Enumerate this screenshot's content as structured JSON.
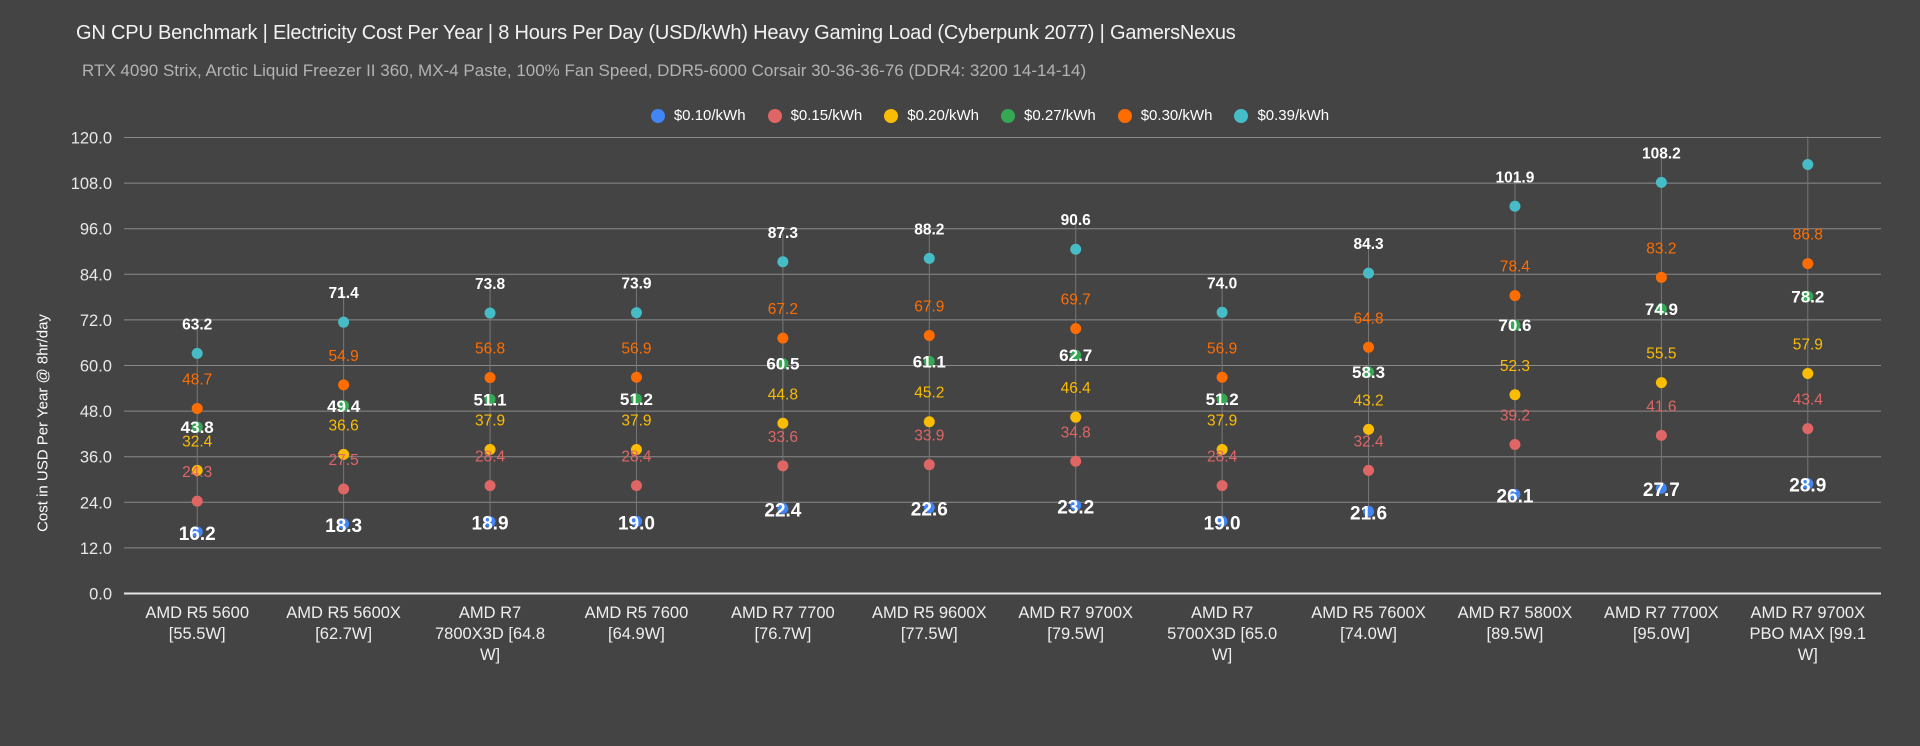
{
  "title": "GN CPU Benchmark | Electricity Cost Per Year | 8 Hours Per Day (USD/kWh) Heavy Gaming Load (Cyberpunk 2077) | GamersNexus",
  "subtitle": "RTX 4090 Strix, Arctic Liquid Freezer II 360, MX-4 Paste, 100% Fan Speed, DDR5-6000 Corsair 30-36-36-76 (DDR4: 3200 14-14-14)",
  "chart_data": {
    "type": "scatter",
    "title": "GN CPU Benchmark | Electricity Cost Per Year | 8 Hours Per Day (USD/kWh) Heavy Gaming Load (Cyberpunk 2077) | GamersNexus",
    "subtitle": "RTX 4090 Strix, Arctic Liquid Freezer II 360, MX-4 Paste, 100% Fan Speed, DDR5-6000 Corsair 30-36-36-76 (DDR4: 3200 14-14-14)",
    "xlabel": "",
    "ylabel": "Cost in USD Per Year @ 8hr/day",
    "ylim": [
      0,
      120
    ],
    "yticks": [
      "0.0",
      "12.0",
      "24.0",
      "36.0",
      "48.0",
      "60.0",
      "72.0",
      "84.0",
      "96.0",
      "108.0",
      "120.0"
    ],
    "grid": true,
    "legend_position": "top-center",
    "categories": [
      "AMD R5 5600 [55.5W]",
      "AMD R5 5600X [62.7W]",
      "AMD R7 7800X3D [64.8 W]",
      "AMD R5 7600 [64.9W]",
      "AMD R7 7700 [76.7W]",
      "AMD R5 9600X [77.5W]",
      "AMD R7 9700X [79.5W]",
      "AMD R7 5700X3D [65.0 W]",
      "AMD R5 7600X [74.0W]",
      "AMD R7 5800X [89.5W]",
      "AMD R7 7700X [95.0W]",
      "AMD R7 9700X PBO MAX [99.1 W]"
    ],
    "category_lines": [
      [
        "AMD R5 5600",
        "[55.5W]"
      ],
      [
        "AMD R5 5600X",
        "[62.7W]"
      ],
      [
        "AMD R7",
        "7800X3D [64.8",
        "W]"
      ],
      [
        "AMD R5 7600",
        "[64.9W]"
      ],
      [
        "AMD R7 7700",
        "[76.7W]"
      ],
      [
        "AMD R5 9600X",
        "[77.5W]"
      ],
      [
        "AMD R7 9700X",
        "[79.5W]"
      ],
      [
        "AMD R7",
        "5700X3D [65.0",
        "W]"
      ],
      [
        "AMD R5 7600X",
        "[74.0W]"
      ],
      [
        "AMD R7 5800X",
        "[89.5W]"
      ],
      [
        "AMD R7 7700X",
        "[95.0W]"
      ],
      [
        "AMD R7 9700X",
        "PBO MAX [99.1",
        "W]"
      ]
    ],
    "series": [
      {
        "name": "$0.10/kWh",
        "color": "#4285F4",
        "label_color": "#ffffff",
        "label_style": "on-point-bold",
        "values": [
          16.2,
          18.3,
          18.9,
          19.0,
          22.4,
          22.6,
          23.2,
          19.0,
          21.6,
          26.1,
          27.7,
          28.9
        ],
        "labels": [
          "16.2",
          "18.3",
          "18.9",
          "19.0",
          "22.4",
          "22.6",
          "23.2",
          "19.0",
          "21.6",
          "26.1",
          "27.7",
          "28.9"
        ]
      },
      {
        "name": "$0.15/kWh",
        "color": "#E06666",
        "label_color": "#E06666",
        "label_style": "above",
        "values": [
          24.3,
          27.5,
          28.4,
          28.4,
          33.6,
          33.9,
          34.8,
          28.4,
          32.4,
          39.2,
          41.6,
          43.4
        ],
        "labels": [
          "24.3",
          "27.5",
          "28.4",
          "28.4",
          "33.6",
          "33.9",
          "34.8",
          "28.4",
          "32.4",
          "39.2",
          "41.6",
          "43.4"
        ]
      },
      {
        "name": "$0.20/kWh",
        "color": "#FBBC04",
        "label_color": "#FBBC04",
        "label_style": "above",
        "values": [
          32.4,
          36.6,
          37.9,
          37.9,
          44.8,
          45.2,
          46.4,
          37.9,
          43.2,
          52.3,
          55.5,
          57.9
        ],
        "labels": [
          "32.4",
          "36.6",
          "37.9",
          "37.9",
          "44.8",
          "45.2",
          "46.4",
          "37.9",
          "43.2",
          "52.3",
          "55.5",
          "57.9"
        ]
      },
      {
        "name": "$0.27/kWh",
        "color": "#34A853",
        "label_color": "#ffffff",
        "label_style": "on-point",
        "values": [
          43.8,
          49.4,
          51.1,
          51.2,
          60.5,
          61.1,
          62.7,
          51.2,
          58.3,
          70.6,
          74.9,
          78.2
        ],
        "labels": [
          "43.8",
          "49.4",
          "51.1",
          "51.2",
          "60.5",
          "61.1",
          "62.7",
          "51.2",
          "58.3",
          "70.6",
          "74.9",
          "78.2"
        ]
      },
      {
        "name": "$0.30/kWh",
        "color": "#FF6D01",
        "label_color": "#FF6D01",
        "label_style": "above",
        "values": [
          48.7,
          54.9,
          56.8,
          56.9,
          67.2,
          67.9,
          69.7,
          56.9,
          64.8,
          78.4,
          83.2,
          86.8
        ],
        "labels": [
          "48.7",
          "54.9",
          "56.8",
          "56.9",
          "67.2",
          "67.9",
          "69.7",
          "56.9",
          "64.8",
          "78.4",
          "83.2",
          "86.8"
        ]
      },
      {
        "name": "$0.39/kWh",
        "color": "#46BDC6",
        "label_color": "#ffffff",
        "label_style": "above-bold",
        "values": [
          63.2,
          71.4,
          73.8,
          73.9,
          87.3,
          88.2,
          90.6,
          74.0,
          84.3,
          101.9,
          108.2,
          112.9
        ],
        "labels": [
          "63.2",
          "71.4",
          "73.8",
          "73.9",
          "87.3",
          "88.2",
          "90.6",
          "74.0",
          "84.3",
          "101.9",
          "108.2",
          ""
        ]
      }
    ]
  }
}
